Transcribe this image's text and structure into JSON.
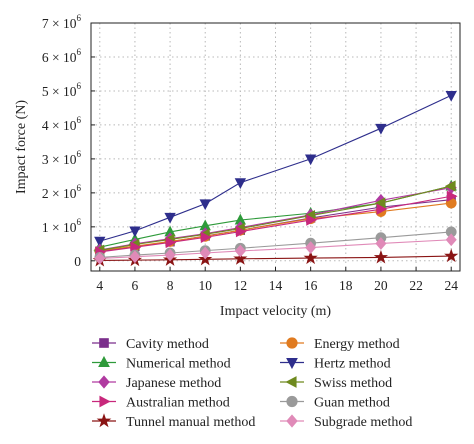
{
  "chart_data": {
    "type": "line",
    "xlabel": "Impact velocity (m)",
    "ylabel": "Impact force (N)",
    "x": [
      4,
      6,
      8,
      10,
      12,
      16,
      20,
      24
    ],
    "xlim": [
      3.5,
      24.5
    ],
    "xticks": [
      "4",
      "6",
      "8",
      "10",
      "12",
      "14",
      "16",
      "18",
      "20",
      "22",
      "24"
    ],
    "ylim": [
      -300000,
      7000000
    ],
    "yticks": [
      {
        "value": 0,
        "base": "0",
        "exp": ""
      },
      {
        "value": 1000000,
        "base": "1 × 10",
        "exp": "6"
      },
      {
        "value": 2000000,
        "base": "2 × 10",
        "exp": "6"
      },
      {
        "value": 3000000,
        "base": "3 × 10",
        "exp": "6"
      },
      {
        "value": 4000000,
        "base": "4 × 10",
        "exp": "6"
      },
      {
        "value": 5000000,
        "base": "5 × 10",
        "exp": "6"
      },
      {
        "value": 6000000,
        "base": "6 × 10",
        "exp": "6"
      },
      {
        "value": 7000000,
        "base": "7 × 10",
        "exp": "6"
      }
    ],
    "grid": true,
    "legend_position": "bottom",
    "series": [
      {
        "name": "Cavity method",
        "color": "#7b2f8c",
        "marker": "square",
        "values": [
          280000,
          420000,
          560000,
          730000,
          900000,
          1260000,
          1580000,
          1800000
        ]
      },
      {
        "name": "Energy method",
        "color": "#e07b20",
        "marker": "circle",
        "values": [
          300000,
          430000,
          570000,
          720000,
          900000,
          1240000,
          1450000,
          1700000
        ]
      },
      {
        "name": "Numerical method",
        "color": "#2e9a3a",
        "marker": "triangle-up",
        "values": [
          400000,
          630000,
          850000,
          1030000,
          1200000,
          1400000,
          1700000,
          2200000
        ]
      },
      {
        "name": "Hertz method",
        "color": "#2e2e8c",
        "marker": "triangle-down",
        "values": [
          580000,
          880000,
          1280000,
          1680000,
          2300000,
          3000000,
          3900000,
          4870000
        ]
      },
      {
        "name": "Japanese method",
        "color": "#b03aa0",
        "marker": "diamond",
        "values": [
          320000,
          500000,
          650000,
          800000,
          980000,
          1350000,
          1780000,
          2150000
        ]
      },
      {
        "name": "Swiss method",
        "color": "#6f8a1f",
        "marker": "triangle-left",
        "values": [
          310000,
          480000,
          630000,
          780000,
          950000,
          1330000,
          1700000,
          2200000
        ]
      },
      {
        "name": "Australian method",
        "color": "#c8287c",
        "marker": "triangle-right",
        "values": [
          260000,
          400000,
          540000,
          690000,
          860000,
          1200000,
          1520000,
          1900000
        ]
      },
      {
        "name": "Guan method",
        "color": "#9a9a9a",
        "marker": "circle",
        "values": [
          100000,
          170000,
          230000,
          300000,
          370000,
          520000,
          680000,
          850000
        ]
      },
      {
        "name": "Tunnel manual method",
        "color": "#8a1414",
        "marker": "star",
        "values": [
          10000,
          20000,
          30000,
          45000,
          60000,
          80000,
          100000,
          140000
        ]
      },
      {
        "name": "Subgrade method",
        "color": "#e08ab8",
        "marker": "diamond",
        "values": [
          70000,
          120000,
          170000,
          230000,
          290000,
          390000,
          510000,
          620000
        ]
      }
    ]
  }
}
